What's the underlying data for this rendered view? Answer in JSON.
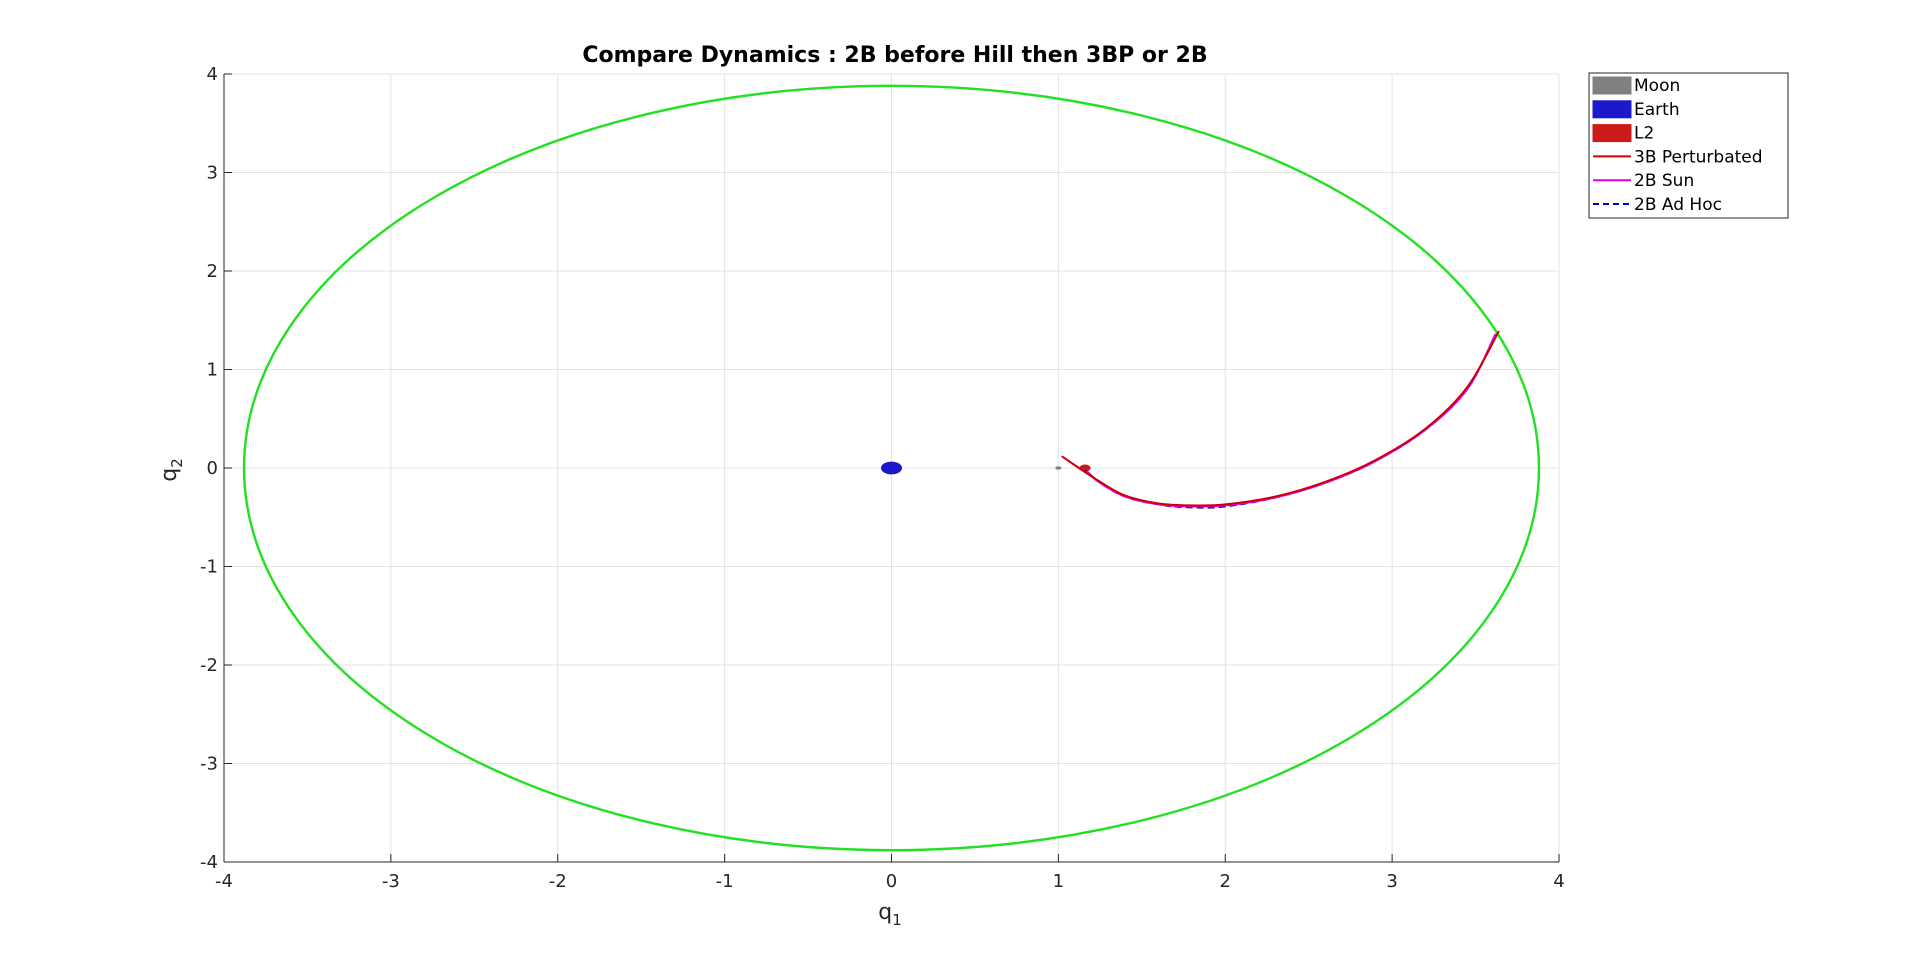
{
  "chart_data": {
    "type": "line",
    "title": "Compare Dynamics : 2B before Hill then 3BP or 2B",
    "xlabel": "q",
    "xlabel_sub": "1",
    "ylabel": "q",
    "ylabel_sub": "2",
    "xlim": [
      -4,
      4
    ],
    "ylim": [
      -4,
      4
    ],
    "xticks": [
      -4,
      -3,
      -2,
      -1,
      0,
      1,
      2,
      3,
      4
    ],
    "yticks": [
      -4,
      -3,
      -2,
      -1,
      0,
      1,
      2,
      3,
      4
    ],
    "xtick_labels": [
      "-4",
      "-3",
      "-2",
      "-1",
      "0",
      "1",
      "2",
      "3",
      "4"
    ],
    "ytick_labels": [
      "-4",
      "-3",
      "-2",
      "-1",
      "0",
      "1",
      "2",
      "3",
      "4"
    ],
    "grid": true,
    "legend_position": "top-right outside",
    "legend": [
      {
        "label": "Moon",
        "kind": "patch",
        "color": "#808080"
      },
      {
        "label": "Earth",
        "kind": "patch",
        "color": "#1a1acc"
      },
      {
        "label": "L2",
        "kind": "patch",
        "color": "#cc1a1a"
      },
      {
        "label": "3B Perturbated",
        "kind": "line",
        "color": "#cc0000",
        "dash": "solid"
      },
      {
        "label": "2B Sun",
        "kind": "line",
        "color": "#e600e6",
        "dash": "solid"
      },
      {
        "label": "2B Ad Hoc",
        "kind": "line",
        "color": "#0000cc",
        "dash": "dashed"
      }
    ],
    "hill_sphere": {
      "center": [
        0,
        0
      ],
      "radius_x": 3.88,
      "radius_y": 3.88,
      "color": "#22e022"
    },
    "bodies": {
      "earth": {
        "center": [
          0,
          0
        ],
        "rx": 0.06,
        "ry": 0.06,
        "color": "#1a1acc"
      },
      "moon": {
        "center": [
          1.0,
          0
        ],
        "rx": 0.015,
        "ry": 0.012,
        "color": "#808080"
      },
      "l2": {
        "center": [
          1.16,
          0
        ],
        "rx": 0.03,
        "ry": 0.03,
        "color": "#cc1a1a"
      }
    },
    "series": [
      {
        "name": "2B Ad Hoc",
        "color": "#0000cc",
        "dash": "dashed",
        "x": [
          1.16,
          1.25,
          1.4,
          1.6,
          1.8,
          2.0,
          2.3,
          2.6,
          2.9,
          3.2,
          3.45,
          3.62
        ],
        "y": [
          -0.02,
          -0.15,
          -0.29,
          -0.37,
          -0.4,
          -0.39,
          -0.3,
          -0.15,
          0.07,
          0.39,
          0.8,
          1.36
        ]
      },
      {
        "name": "2B Sun",
        "color": "#e600e6",
        "dash": "solid",
        "x": [
          1.17,
          1.25,
          1.4,
          1.6,
          1.8,
          2.0,
          2.3,
          2.6,
          2.9,
          3.2,
          3.45,
          3.62
        ],
        "y": [
          -0.03,
          -0.15,
          -0.29,
          -0.37,
          -0.39,
          -0.38,
          -0.3,
          -0.15,
          0.07,
          0.39,
          0.8,
          1.36
        ]
      },
      {
        "name": "3B Perturbated",
        "color": "#cc0000",
        "dash": "solid",
        "x": [
          1.02,
          1.08,
          1.15,
          1.25,
          1.4,
          1.6,
          1.8,
          2.0,
          2.3,
          2.6,
          2.9,
          3.2,
          3.45,
          3.64
        ],
        "y": [
          0.12,
          0.05,
          -0.03,
          -0.14,
          -0.28,
          -0.36,
          -0.38,
          -0.37,
          -0.29,
          -0.14,
          0.08,
          0.4,
          0.82,
          1.39
        ]
      }
    ]
  }
}
